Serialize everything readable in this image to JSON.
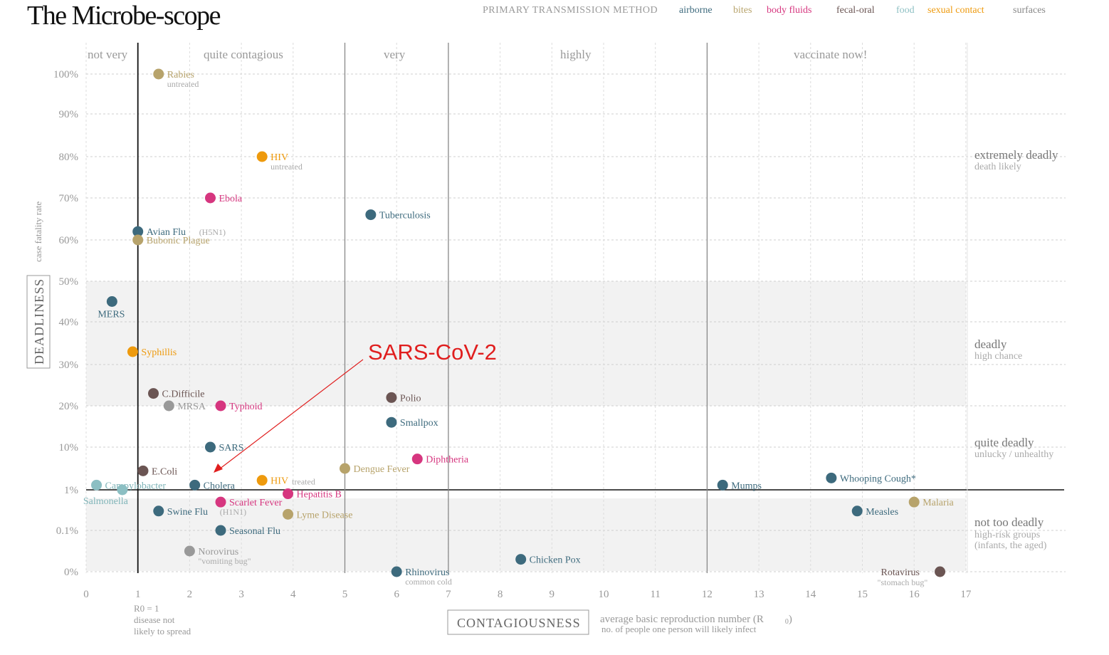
{
  "title": "The Microbe-scope",
  "legend": {
    "heading": "PRIMARY TRANSMISSION METHOD",
    "items": [
      {
        "key": "airborne",
        "label": "airborne",
        "color": "#3d6a7d"
      },
      {
        "key": "bites",
        "label": "bites",
        "color": "#b7a36b"
      },
      {
        "key": "body_fluids",
        "label": "body fluids",
        "color": "#d6367f"
      },
      {
        "key": "fecal_oral",
        "label": "fecal-oral",
        "color": "#6b5553"
      },
      {
        "key": "food",
        "label": "food",
        "color": "#8cbfc3"
      },
      {
        "key": "sexual",
        "label": "sexual contact",
        "color": "#ee9a0d"
      },
      {
        "key": "surfaces",
        "label": "surfaces",
        "color": "#999999"
      }
    ]
  },
  "contagion_bands": [
    "not very",
    "quite contagious",
    "very",
    "highly",
    "vaccinate now!"
  ],
  "deadliness_zones": [
    {
      "label": "extremely deadly",
      "sub": "death likely"
    },
    {
      "label": "deadly",
      "sub": "high chance"
    },
    {
      "label": "quite deadly",
      "sub": "unlucky / unhealthy"
    },
    {
      "label": "not too deadly",
      "sub": "high-risk groups",
      "sub2": "(infants, the aged)"
    }
  ],
  "y_axis": {
    "box_label": "DEADLINESS",
    "label": "case fatality rate",
    "ticks": [
      "100%",
      "90%",
      "80%",
      "70%",
      "60%",
      "50%",
      "40%",
      "30%",
      "20%",
      "10%",
      "1%",
      "0.1%",
      "0%"
    ]
  },
  "x_axis": {
    "box_label": "CONTAGIOUSNESS",
    "desc": "average basic reproduction number (R",
    "desc_sub": "0",
    "desc_end": ")",
    "desc2": "no. of people one person will likely infect",
    "ticks": [
      "0",
      "1",
      "2",
      "3",
      "4",
      "5",
      "6",
      "7",
      "8",
      "9",
      "10",
      "11",
      "12",
      "13",
      "14",
      "15",
      "16",
      "17"
    ],
    "r0_note": [
      "R0 = 1",
      "disease not",
      "likely to spread"
    ]
  },
  "annotation": {
    "label": "SARS-CoV-2",
    "color": "#e01e1e"
  },
  "chart_data": {
    "type": "scatter",
    "title": "The Microbe-scope",
    "xlabel": "CONTAGIOUSNESS",
    "ylabel": "DEADLINESS",
    "xlim": [
      0,
      17
    ],
    "y_scale_note": "piecewise: linear 50%-100% top section, compressed 0%-50% below",
    "points": [
      {
        "name": "Rabies",
        "sub": "untreated",
        "x": 1.4,
        "y": 100,
        "t": "bites"
      },
      {
        "name": "HIV",
        "sub": "untreated",
        "x": 3.4,
        "y": 80,
        "t": "sexual"
      },
      {
        "name": "Ebola",
        "x": 2.4,
        "y": 70,
        "t": "body_fluids"
      },
      {
        "name": "Tuberculosis",
        "x": 5.5,
        "y": 66,
        "t": "airborne"
      },
      {
        "name": "Avian Flu",
        "sub": "(H5N1)",
        "x": 1.0,
        "y": 62,
        "t": "airborne"
      },
      {
        "name": "Bubonic Plague",
        "x": 1.0,
        "y": 60,
        "t": "bites"
      },
      {
        "name": "MERS",
        "x": 0.5,
        "y": 45,
        "t": "airborne"
      },
      {
        "name": "Syphillis",
        "x": 0.9,
        "y": 33,
        "t": "sexual"
      },
      {
        "name": "C.Difficile",
        "x": 1.3,
        "y": 23,
        "t": "fecal_oral"
      },
      {
        "name": "MRSA",
        "x": 1.6,
        "y": 20,
        "t": "surfaces"
      },
      {
        "name": "Typhoid",
        "x": 2.6,
        "y": 20,
        "t": "body_fluids"
      },
      {
        "name": "Polio",
        "x": 5.9,
        "y": 22,
        "t": "fecal_oral"
      },
      {
        "name": "Smallpox",
        "x": 5.9,
        "y": 16,
        "t": "airborne"
      },
      {
        "name": "SARS",
        "x": 2.4,
        "y": 10,
        "t": "airborne"
      },
      {
        "name": "Diphtheria",
        "x": 6.4,
        "y": 7.5,
        "t": "body_fluids"
      },
      {
        "name": "Dengue Fever",
        "x": 5.0,
        "y": 5.5,
        "t": "bites"
      },
      {
        "name": "E.Coli",
        "x": 1.1,
        "y": 5,
        "t": "fecal_oral"
      },
      {
        "name": "HIV",
        "sub": "treated",
        "x": 3.4,
        "y": 3,
        "t": "sexual"
      },
      {
        "name": "Campylobacter",
        "x": 0.2,
        "y": 2,
        "t": "food"
      },
      {
        "name": "Cholera",
        "x": 2.1,
        "y": 2,
        "t": "airborne"
      },
      {
        "name": "Mumps",
        "x": 12.3,
        "y": 2,
        "t": "airborne"
      },
      {
        "name": "Whooping Cough*",
        "x": 14.4,
        "y": 3.5,
        "t": "airborne"
      },
      {
        "name": "Salmonella",
        "x": 0.7,
        "y": 1,
        "t": "food"
      },
      {
        "name": "Hepatitis B",
        "x": 3.9,
        "y": 0.8,
        "t": "body_fluids"
      },
      {
        "name": "Scarlet Fever",
        "x": 2.6,
        "y": 0.5,
        "t": "body_fluids"
      },
      {
        "name": "Swine Flu",
        "sub": "(H1N1)",
        "x": 1.4,
        "y": 0.3,
        "t": "airborne"
      },
      {
        "name": "Lyme Disease",
        "x": 3.9,
        "y": 0.25,
        "t": "bites"
      },
      {
        "name": "Seasonal Flu",
        "x": 2.6,
        "y": 0.1,
        "t": "airborne"
      },
      {
        "name": "Measles",
        "x": 14.9,
        "y": 0.3,
        "t": "airborne"
      },
      {
        "name": "Malaria",
        "x": 16.0,
        "y": 0.5,
        "t": "bites"
      },
      {
        "name": "Norovirus",
        "sub": "\"vomiting bug\"",
        "x": 2.0,
        "y": 0.05,
        "t": "surfaces"
      },
      {
        "name": "Chicken Pox",
        "x": 8.4,
        "y": 0.03,
        "t": "airborne"
      },
      {
        "name": "Rhinovirus",
        "sub": "common cold",
        "x": 6.0,
        "y": 0.0,
        "t": "airborne"
      },
      {
        "name": "Rotavirus",
        "sub": "\"stomach bug\"",
        "x": 16.5,
        "y": 0.0,
        "t": "fecal_oral"
      }
    ]
  }
}
